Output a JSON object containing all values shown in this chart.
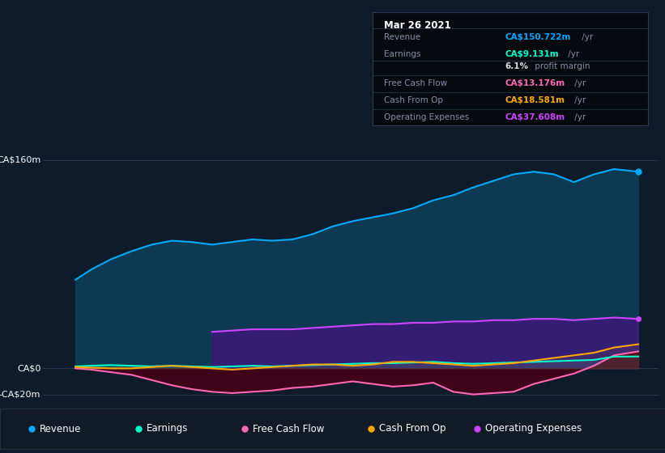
{
  "background_color": "#0d1b2a",
  "plot_bg_color": "#0d1b2a",
  "title_box": {
    "date": "Mar 26 2021",
    "rows": [
      {
        "label": "Revenue",
        "value": "CA$150.722m",
        "unit": " /yr",
        "value_color": "#00aaff"
      },
      {
        "label": "Earnings",
        "value": "CA$9.131m",
        "unit": " /yr",
        "value_color": "#00ffcc"
      },
      {
        "label": "",
        "value": "6.1%",
        "unit": " profit margin",
        "value_color": "#dddddd"
      },
      {
        "label": "Free Cash Flow",
        "value": "CA$13.176m",
        "unit": " /yr",
        "value_color": "#ff69b4"
      },
      {
        "label": "Cash From Op",
        "value": "CA$18.581m",
        "unit": " /yr",
        "value_color": "#ffa500"
      },
      {
        "label": "Operating Expenses",
        "value": "CA$37.608m",
        "unit": " /yr",
        "value_color": "#cc44ff"
      }
    ]
  },
  "y_label_top": "CA$160m",
  "y_label_zero": "CA$0",
  "y_label_neg": "-CA$20m",
  "ylim": [
    -25,
    175
  ],
  "xlim_start": 2013.9,
  "xlim_end": 2021.55,
  "xticks": [
    2015,
    2016,
    2017,
    2018,
    2019,
    2020,
    2021
  ],
  "x": [
    2014.3,
    2014.5,
    2014.75,
    2015.0,
    2015.25,
    2015.5,
    2015.75,
    2016.0,
    2016.25,
    2016.5,
    2016.75,
    2017.0,
    2017.25,
    2017.5,
    2017.75,
    2018.0,
    2018.25,
    2018.5,
    2018.75,
    2019.0,
    2019.25,
    2019.5,
    2019.75,
    2020.0,
    2020.25,
    2020.5,
    2020.75,
    2021.0,
    2021.3
  ],
  "revenue": [
    68,
    76,
    84,
    90,
    95,
    98,
    97,
    95,
    97,
    99,
    98,
    99,
    103,
    109,
    113,
    116,
    119,
    123,
    129,
    133,
    139,
    144,
    149,
    151,
    149,
    143,
    149,
    153,
    151
  ],
  "earnings": [
    1.5,
    2.0,
    2.5,
    2.0,
    1.5,
    2.0,
    1.5,
    1.0,
    1.5,
    2.0,
    1.5,
    2.0,
    2.5,
    3.0,
    3.5,
    4.0,
    4.0,
    4.5,
    5.0,
    4.0,
    3.5,
    4.0,
    4.5,
    5.0,
    5.5,
    6.0,
    6.5,
    9.0,
    9.1
  ],
  "free_cash_flow": [
    0,
    -1,
    -3,
    -5,
    -9,
    -13,
    -16,
    -18,
    -19,
    -18,
    -17,
    -15,
    -14,
    -12,
    -10,
    -12,
    -14,
    -13,
    -11,
    -18,
    -20,
    -19,
    -18,
    -12,
    -8,
    -4,
    2,
    10,
    13
  ],
  "cash_from_op": [
    1.0,
    0.5,
    0,
    0,
    1.0,
    2.0,
    1.0,
    0,
    -1.0,
    0,
    1.0,
    2.0,
    3.0,
    3.0,
    2.0,
    3.0,
    5.0,
    5.0,
    4.0,
    3.0,
    2.0,
    3.0,
    4.0,
    6.0,
    8.0,
    10.0,
    12.0,
    16.0,
    18.5
  ],
  "op_exp_x": [
    2016.0,
    2016.25,
    2016.5,
    2016.75,
    2017.0,
    2017.25,
    2017.5,
    2017.75,
    2018.0,
    2018.25,
    2018.5,
    2018.75,
    2019.0,
    2019.25,
    2019.5,
    2019.75,
    2020.0,
    2020.25,
    2020.5,
    2020.75,
    2021.0,
    2021.3
  ],
  "op_exp_y": [
    28,
    29,
    30,
    30,
    30,
    31,
    32,
    33,
    34,
    34,
    35,
    35,
    36,
    36,
    37,
    37,
    38,
    38,
    37,
    38,
    39,
    38
  ],
  "series_colors": {
    "revenue_line": "#00aaff",
    "revenue_fill": "#0d3a52",
    "earnings_line": "#00ffcc",
    "free_cash_flow_line": "#ff69b4",
    "free_cash_flow_fill": "#4a0018",
    "cash_from_op_line": "#ffa500",
    "op_exp_line": "#cc44ff",
    "op_exp_fill": "#3a1a7a"
  },
  "legend_items": [
    {
      "label": "Revenue",
      "color": "#00aaff"
    },
    {
      "label": "Earnings",
      "color": "#00ffcc"
    },
    {
      "label": "Free Cash Flow",
      "color": "#ff69b4"
    },
    {
      "label": "Cash From Op",
      "color": "#ffa500"
    },
    {
      "label": "Operating Expenses",
      "color": "#cc44ff"
    }
  ]
}
